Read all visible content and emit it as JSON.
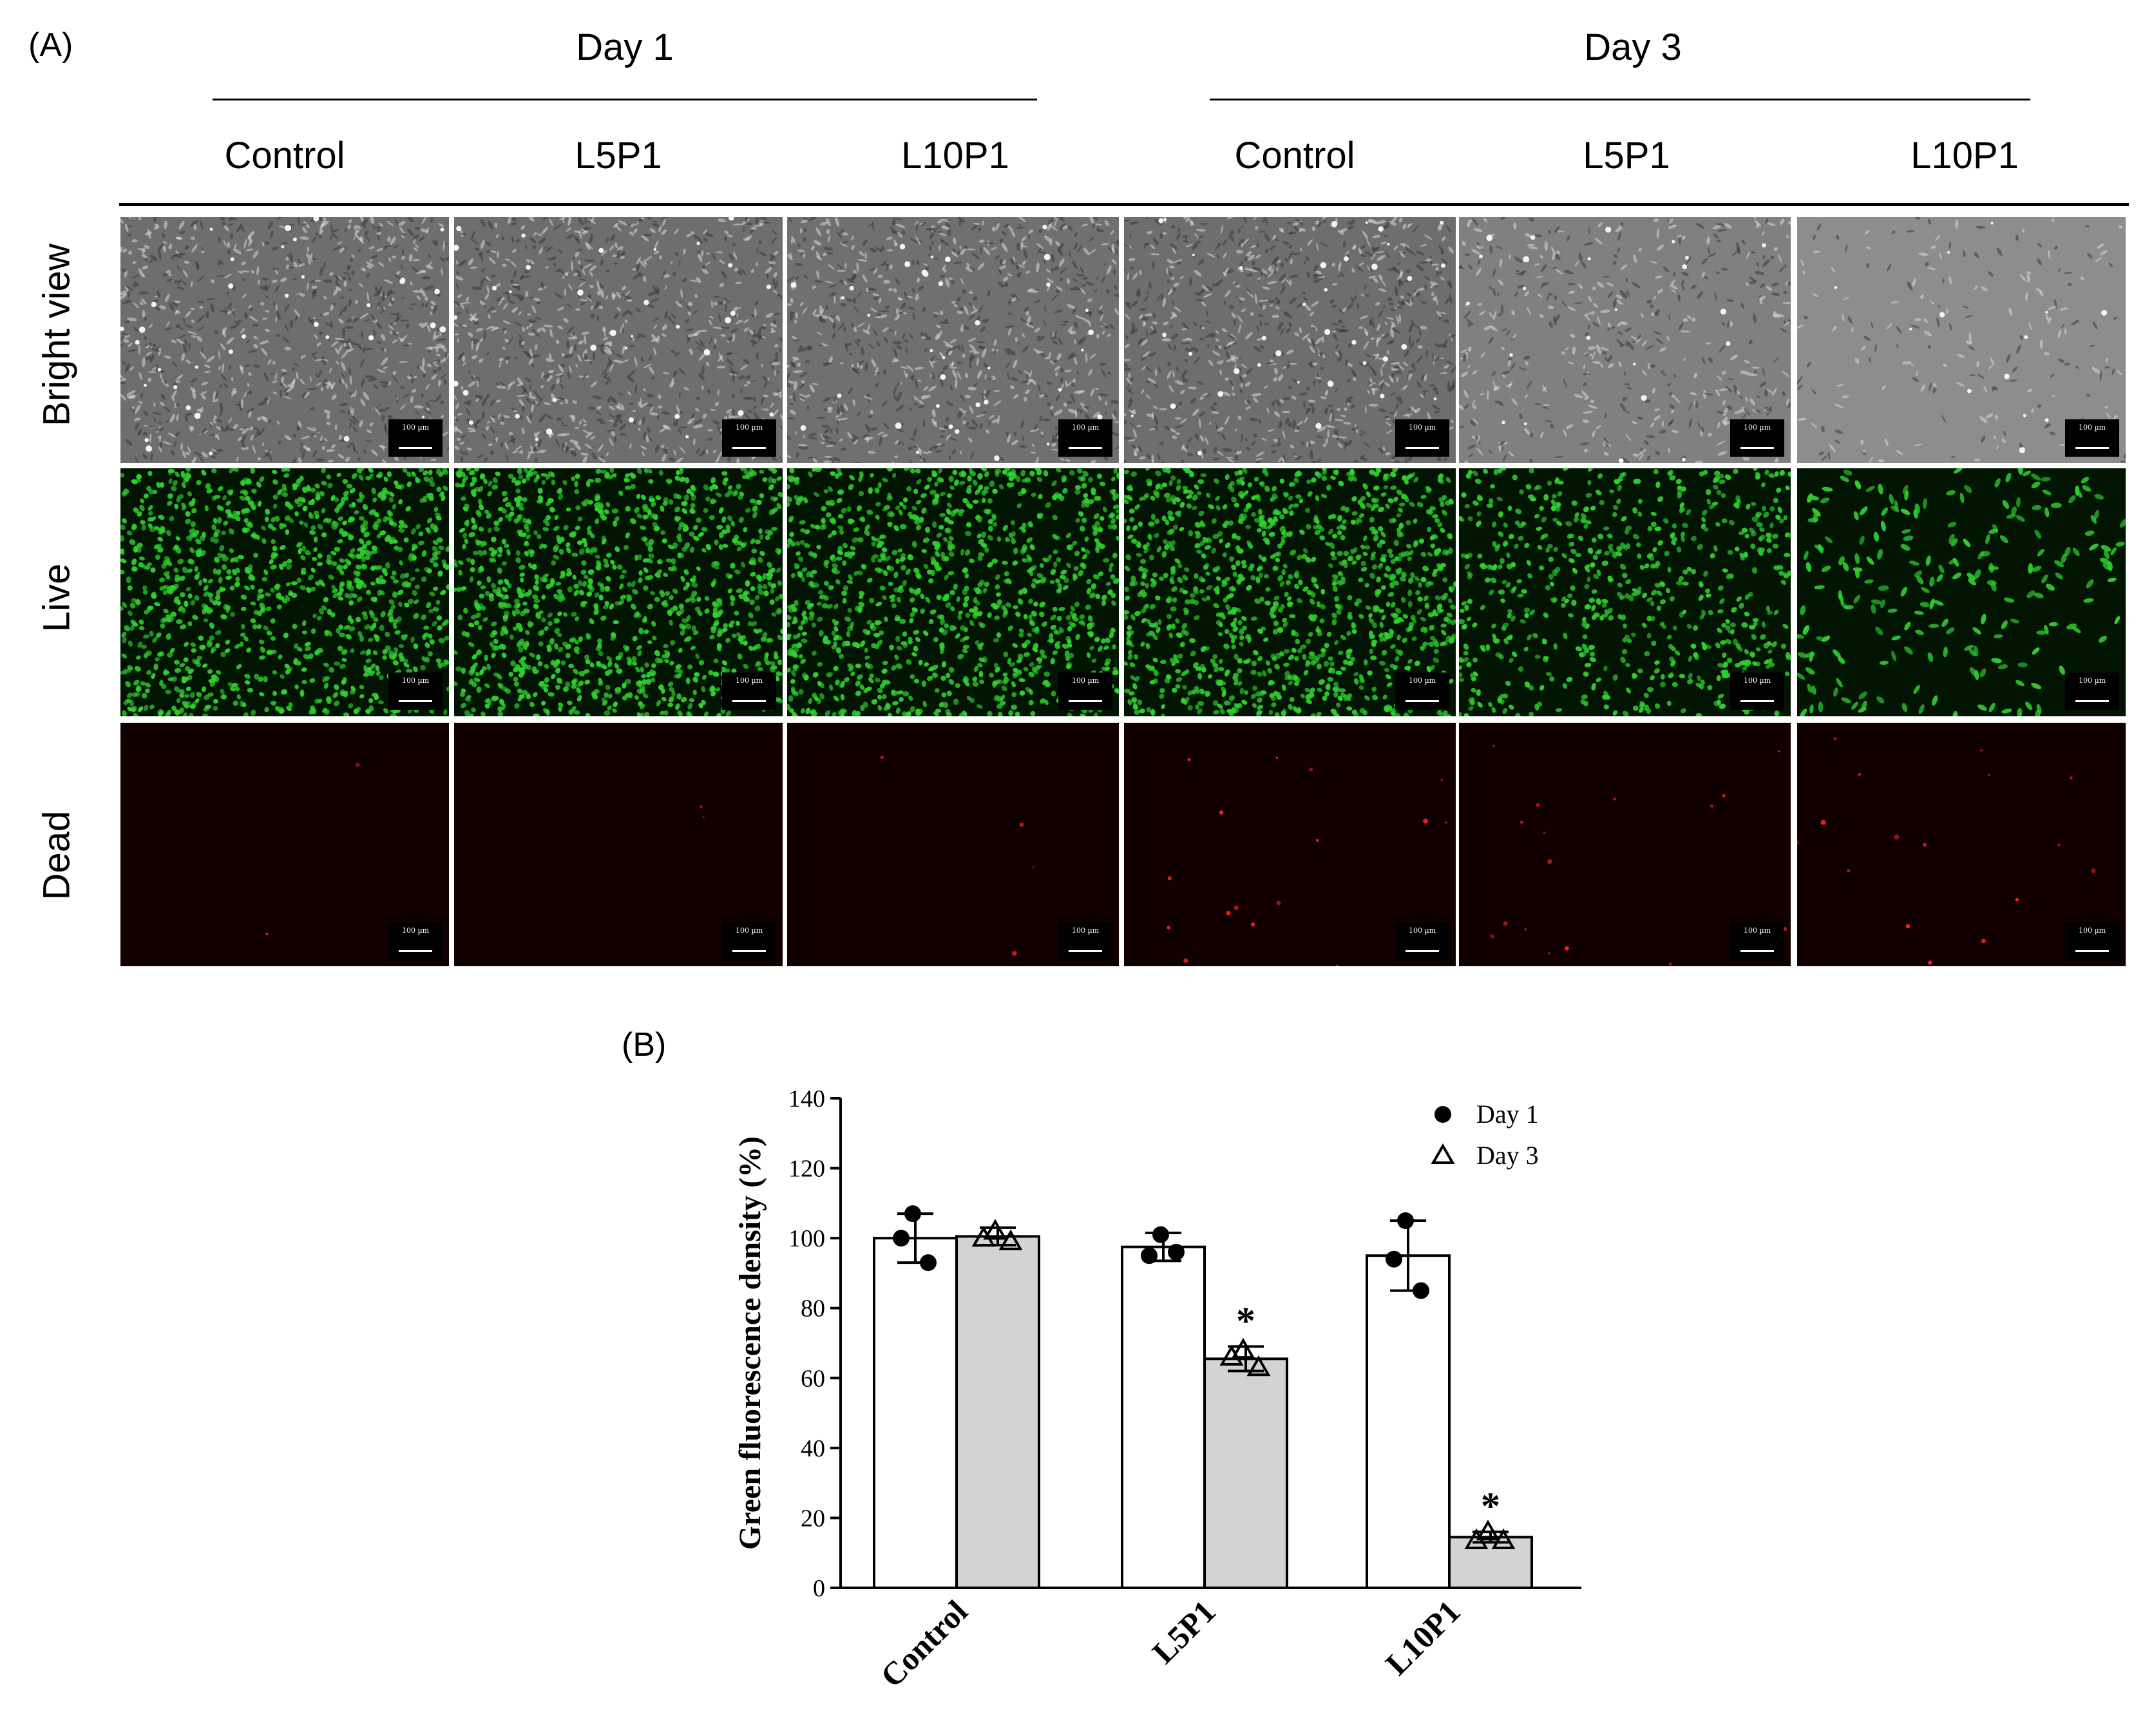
{
  "panel_a": {
    "label": "(A)",
    "day_headers": [
      "Day 1",
      "Day 3"
    ],
    "columns": [
      "Control",
      "L5P1",
      "L10P1",
      "Control",
      "L5P1",
      "L10P1"
    ],
    "rows": [
      "Bright view",
      "Live",
      "Dead"
    ],
    "scale_bar_texts": [
      [
        "100 µm",
        "100 µm",
        "100 µm",
        "100 µm",
        "100 µm",
        "100 µm"
      ],
      [
        "100 µm",
        "100 µm",
        "100 µm",
        "100 µm",
        "100 µm",
        "100 µm"
      ],
      [
        "100 µm",
        "100 µm",
        "100 µm",
        "100 µm",
        "100 µm",
        "100 µm"
      ]
    ],
    "cell_densities": {
      "bright": [
        1.0,
        1.0,
        0.95,
        1.0,
        0.55,
        0.22
      ],
      "live": [
        1.0,
        1.0,
        0.95,
        1.0,
        0.6,
        0.2
      ],
      "dead": [
        0.02,
        0.02,
        0.1,
        0.6,
        0.6,
        0.6
      ]
    },
    "colors": {
      "live_stain": "#2fd02f",
      "dead_stain": "#ff2020",
      "dead_bg": "#120000",
      "live_bg": "#021402"
    }
  },
  "panel_b": {
    "label": "(B)"
  },
  "chart_data": {
    "type": "bar",
    "categories": [
      "Control",
      "L5P1",
      "L10P1"
    ],
    "series": [
      {
        "name": "Day 1",
        "values": [
          100,
          97.5,
          95
        ],
        "sd": [
          7,
          4,
          10
        ],
        "points": [
          [
            107,
            100,
            93
          ],
          [
            101,
            95,
            96
          ],
          [
            105,
            94,
            85
          ]
        ],
        "fill": "#ffffff",
        "marker": "circle"
      },
      {
        "name": "Day 3",
        "values": [
          100.5,
          65.5,
          14.5
        ],
        "sd": [
          2.5,
          3.5,
          1.5
        ],
        "points": [
          [
            102,
            100,
            99
          ],
          [
            68,
            66,
            63
          ],
          [
            16,
            13.5,
            13.5
          ]
        ],
        "fill": "#d3d3d3",
        "marker": "triangle"
      }
    ],
    "significance": [
      [
        "",
        ""
      ],
      [
        "",
        "*"
      ],
      [
        "",
        "*"
      ]
    ],
    "ylabel": "Green fluorescence density (%)",
    "xlabel": "",
    "ylim": [
      0,
      140
    ],
    "yticks": [
      0,
      20,
      40,
      60,
      80,
      100,
      120,
      140
    ],
    "grid": false,
    "legend_position": "top-right"
  }
}
